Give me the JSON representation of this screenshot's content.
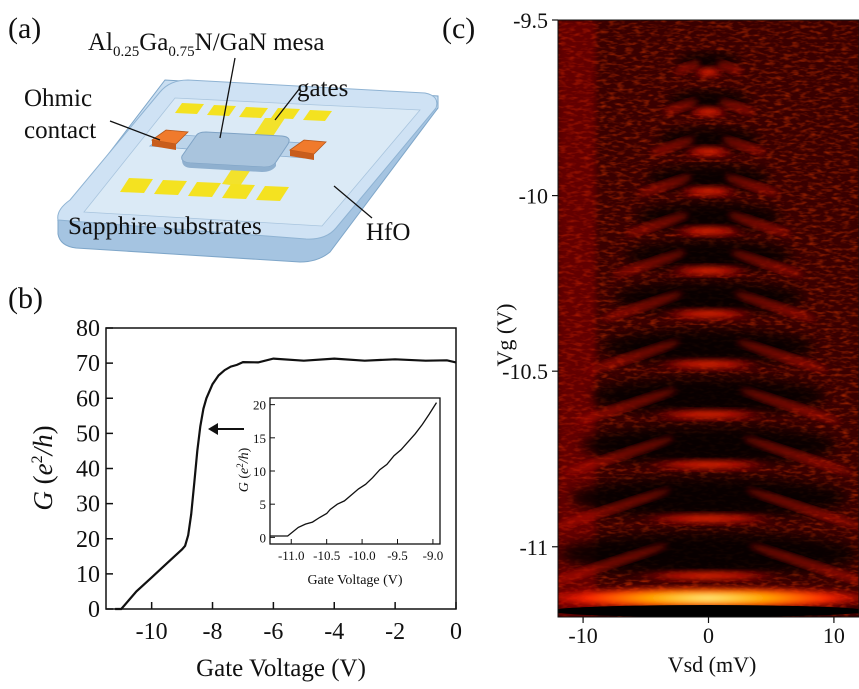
{
  "panel_a": {
    "label": "(a)",
    "mesa_label": {
      "pre": "Al",
      "sub1": "0.25",
      "mid": "Ga",
      "sub2": "0.75",
      "post": "N/GaN mesa"
    },
    "gates_label": "gates",
    "ohmic_label_line1": "Ohmic",
    "ohmic_label_line2": "contact",
    "substrate_label": "Sapphire substrates",
    "hfo_label": "HfO",
    "colors": {
      "substrate": "#b8d3ec",
      "hfo": "#d7e8f5",
      "gate": "#f6e324",
      "contact": "#f07a2c",
      "mesa": "#a9c4dd"
    }
  },
  "chart_data": [
    {
      "panel": "(b)",
      "type": "line",
      "xlabel": "Gate Voltage (V)",
      "ylabel": {
        "italic_G": "G",
        "open": " (",
        "e": "e",
        "sup": "2",
        "slash_h": "/h",
        "close": ")"
      },
      "xlim": [
        -11.5,
        0
      ],
      "ylim": [
        0,
        80
      ],
      "xticks": [
        -10,
        -8,
        -6,
        -4,
        -2,
        0
      ],
      "yticks": [
        0,
        10,
        20,
        30,
        40,
        50,
        60,
        70,
        80
      ],
      "series": [
        {
          "x": [
            -11.2,
            -11.0,
            -10.9,
            -10.7,
            -10.5,
            -10.0,
            -9.5,
            -9.0,
            -8.9,
            -8.8,
            -8.7,
            -8.6,
            -8.5,
            -8.4,
            -8.3,
            -8.2,
            -8.0,
            -7.8,
            -7.6,
            -7.4,
            -7.2,
            -7.0,
            -6.5,
            -6.0,
            -5.0,
            -4.0,
            -3.0,
            -2.0,
            -1.0,
            -0.3,
            0.0
          ],
          "y": [
            0,
            0,
            1,
            3,
            5,
            9,
            13,
            17,
            18,
            21,
            27,
            36,
            45,
            52,
            57,
            60,
            64,
            66.5,
            68,
            69,
            69.5,
            70,
            70.5,
            71,
            71,
            71,
            71,
            70.8,
            71,
            70.5,
            70.5
          ]
        }
      ],
      "annotation": "arrow pointing left at the rising edge"
    },
    {
      "panel": "(b) inset",
      "type": "line",
      "xlabel": "Gate Voltage (V)",
      "ylabel": {
        "italic_G": "G",
        "open": " (",
        "e": "e",
        "sup": "2",
        "slash_h": "/h",
        "close": ")"
      },
      "xlim": [
        -11.3,
        -8.9
      ],
      "ylim": [
        -1,
        21
      ],
      "xticks": [
        -11.0,
        -10.5,
        -10.0,
        -9.5,
        -9.0
      ],
      "xtick_labels": [
        "-11.0",
        "-10.5",
        "-10.0",
        "-9.5",
        "-9.0"
      ],
      "yticks": [
        0,
        5,
        10,
        15,
        20
      ],
      "series": [
        {
          "x": [
            -11.3,
            -11.05,
            -10.9,
            -10.8,
            -10.7,
            -10.6,
            -10.5,
            -10.45,
            -10.35,
            -10.25,
            -10.15,
            -10.05,
            -9.95,
            -9.85,
            -9.75,
            -9.65,
            -9.55,
            -9.45,
            -9.35,
            -9.25,
            -9.15,
            -9.05,
            -8.95
          ],
          "y": [
            0.2,
            0.2,
            1.5,
            2.0,
            2.3,
            3.0,
            3.6,
            4.2,
            5.0,
            5.5,
            6.4,
            7.3,
            8.0,
            9.0,
            10.2,
            11.0,
            12.3,
            13.2,
            14.4,
            15.6,
            17.0,
            18.6,
            20.3
          ]
        }
      ]
    },
    {
      "panel": "(c)",
      "type": "heatmap",
      "xlabel": "Vsd (mV)",
      "ylabel": "Vg (V)",
      "xlim": [
        -12,
        12
      ],
      "ylim": [
        -11.2,
        -9.5
      ],
      "xticks": [
        -10,
        0,
        10
      ],
      "yticks": [
        -9.5,
        -10,
        -10.5,
        -11
      ],
      "ytick_labels": [
        "-9.5",
        "-10",
        "-10.5",
        "-11"
      ],
      "colormap": [
        "#000000",
        "#5a0000",
        "#c00000",
        "#ff3a00",
        "#ffb000",
        "#ffff80"
      ],
      "diamonds_vg": [
        -11.02,
        -10.86,
        -10.71,
        -10.57,
        -10.43,
        -10.29,
        -10.17,
        -10.06,
        -9.95,
        -9.84,
        -9.73,
        -9.62
      ]
    }
  ]
}
